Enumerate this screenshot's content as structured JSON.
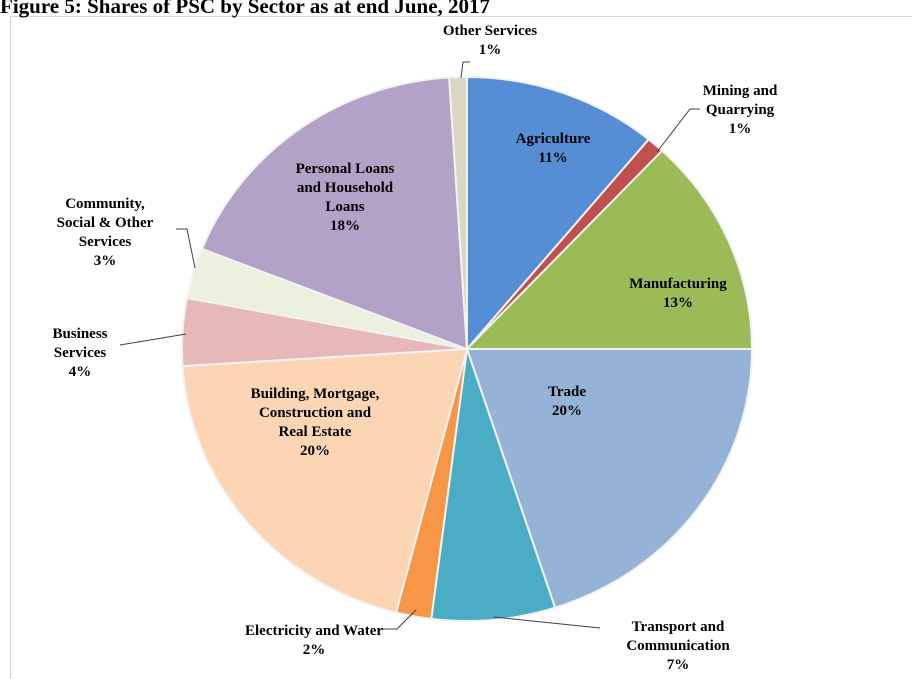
{
  "chart_data": {
    "type": "pie",
    "title": "Figure 5: Shares of PSC by Sector as at end June, 2017",
    "categories": [
      "Agriculture",
      "Mining and Quarrying",
      "Manufacturing",
      "Trade",
      "Transport and Communication",
      "Electricity and Water",
      "Building, Mortgage, Construction and Real Estate",
      "Business Services",
      "Community, Social & Other Services",
      "Personal Loans and Household Loans",
      "Other Services"
    ],
    "values": [
      11,
      1,
      13,
      20,
      7,
      2,
      20,
      4,
      3,
      18,
      1
    ],
    "value_labels": [
      "11%",
      "1%",
      "13%",
      "20%",
      "7%",
      "2%",
      "20%",
      "4%",
      "3%",
      "18%",
      "1%"
    ],
    "colors": [
      "#558ed5",
      "#c0504d",
      "#9bbb59",
      "#95b3d7",
      "#4bacc6",
      "#f79646",
      "#fcd5b5",
      "#e6b9b8",
      "#ebf1de",
      "#b3a2c7",
      "#d9d9c3"
    ]
  }
}
